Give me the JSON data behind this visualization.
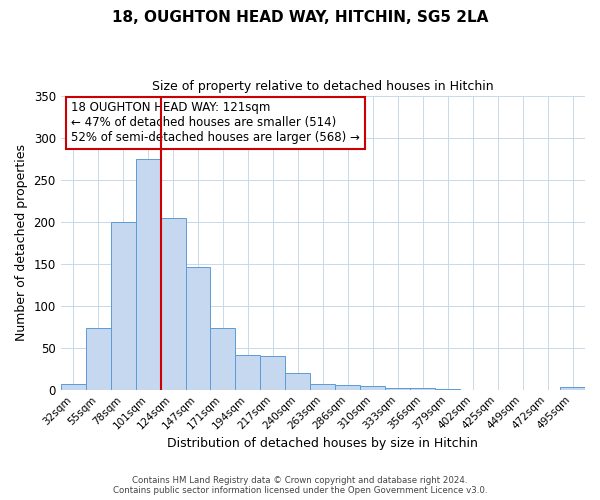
{
  "title": "18, OUGHTON HEAD WAY, HITCHIN, SG5 2LA",
  "subtitle": "Size of property relative to detached houses in Hitchin",
  "xlabel": "Distribution of detached houses by size in Hitchin",
  "ylabel": "Number of detached properties",
  "bar_labels": [
    "32sqm",
    "55sqm",
    "78sqm",
    "101sqm",
    "124sqm",
    "147sqm",
    "171sqm",
    "194sqm",
    "217sqm",
    "240sqm",
    "263sqm",
    "286sqm",
    "310sqm",
    "333sqm",
    "356sqm",
    "379sqm",
    "402sqm",
    "425sqm",
    "449sqm",
    "472sqm",
    "495sqm"
  ],
  "bar_values": [
    7,
    73,
    200,
    275,
    204,
    146,
    73,
    41,
    40,
    20,
    7,
    6,
    5,
    2,
    2,
    1,
    0,
    0,
    0,
    0,
    3
  ],
  "bar_color": "#c5d8f0",
  "bar_edge_color": "#5b9bd5",
  "vline_color": "#cc0000",
  "vline_x_index": 3.5,
  "ylim": [
    0,
    350
  ],
  "yticks": [
    0,
    50,
    100,
    150,
    200,
    250,
    300,
    350
  ],
  "annotation_title": "18 OUGHTON HEAD WAY: 121sqm",
  "annotation_line1": "← 47% of detached houses are smaller (514)",
  "annotation_line2": "52% of semi-detached houses are larger (568) →",
  "annotation_box_color": "#ffffff",
  "annotation_box_edgecolor": "#cc0000",
  "footer_line1": "Contains HM Land Registry data © Crown copyright and database right 2024.",
  "footer_line2": "Contains public sector information licensed under the Open Government Licence v3.0.",
  "background_color": "#ffffff",
  "grid_color": "#c8d8e8"
}
